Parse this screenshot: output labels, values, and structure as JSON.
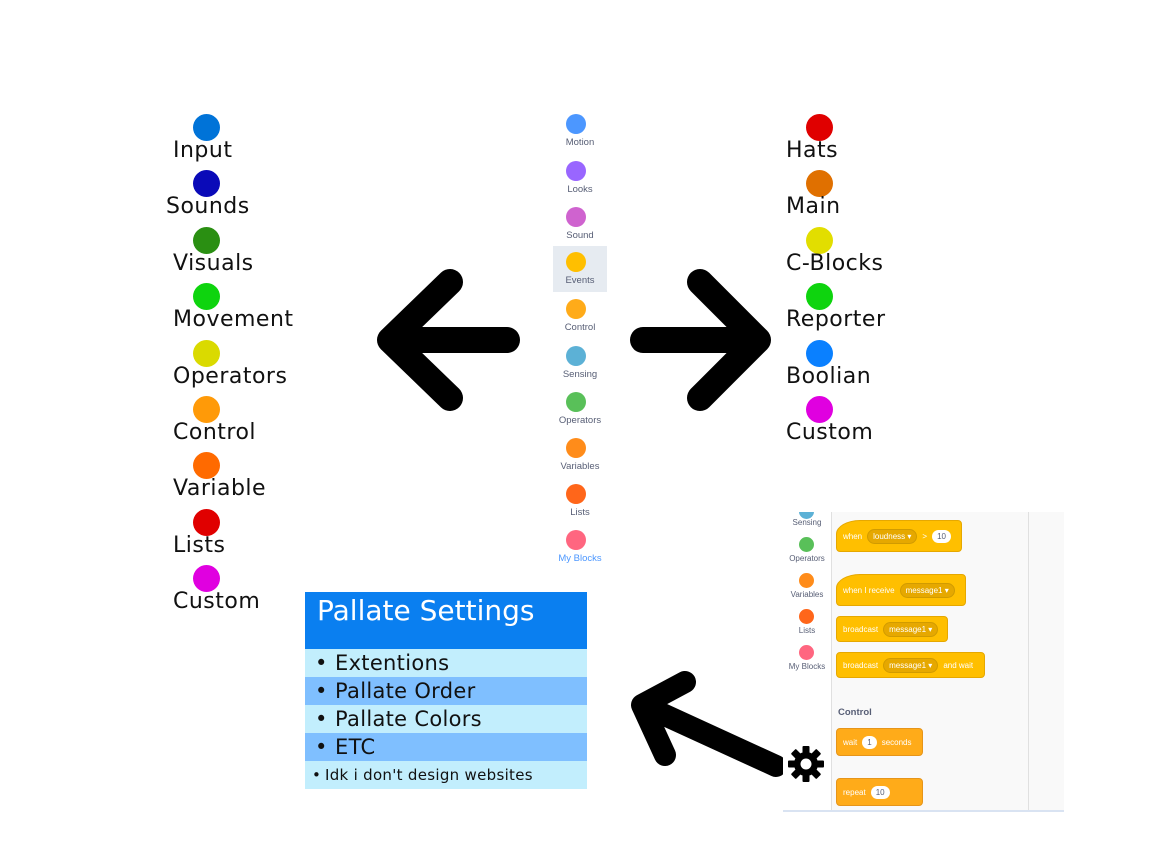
{
  "left_list": {
    "items": [
      {
        "label": "Input",
        "color": "#0073d8"
      },
      {
        "label": "Sounds",
        "color": "#0a0ab8"
      },
      {
        "label": "Visuals",
        "color": "#2a8f12"
      },
      {
        "label": "Movement",
        "color": "#0ed40e"
      },
      {
        "label": "Operators",
        "color": "#dada00"
      },
      {
        "label": "Control",
        "color": "#ff9a08"
      },
      {
        "label": "Variable",
        "color": "#ff6a00"
      },
      {
        "label": "Lists",
        "color": "#e00000"
      },
      {
        "label": "Custom",
        "color": "#e000e0"
      }
    ]
  },
  "right_list": {
    "items": [
      {
        "label": "Hats",
        "color": "#e00000"
      },
      {
        "label": "Main",
        "color": "#e07000"
      },
      {
        "label": "C-Blocks",
        "color": "#e2de00"
      },
      {
        "label": "Reporter",
        "color": "#0ed40e"
      },
      {
        "label": "Boolian",
        "color": "#0a80ff"
      },
      {
        "label": "Custom",
        "color": "#e000e0"
      }
    ]
  },
  "categories": {
    "items": [
      {
        "label": "Motion",
        "color": "#4c97ff"
      },
      {
        "label": "Looks",
        "color": "#9966ff"
      },
      {
        "label": "Sound",
        "color": "#cf63cf"
      },
      {
        "label": "Events",
        "color": "#ffbf00",
        "selected": true
      },
      {
        "label": "Control",
        "color": "#ffab19"
      },
      {
        "label": "Sensing",
        "color": "#5cb1d6"
      },
      {
        "label": "Operators",
        "color": "#59c059"
      },
      {
        "label": "Variables",
        "color": "#ff8c1a"
      },
      {
        "label": "Lists",
        "color": "#ff661a"
      },
      {
        "label": "My Blocks",
        "color": "#ff6680"
      }
    ]
  },
  "settings": {
    "title": "Pallate Settings",
    "rows": [
      {
        "bullet": "•",
        "text": "Extentions"
      },
      {
        "bullet": "•",
        "text": "Pallate Order"
      },
      {
        "bullet": "•",
        "text": "Pallate Colors"
      },
      {
        "bullet": "•",
        "text": "ETC"
      },
      {
        "bullet": "•",
        "text": "Idk i don't design websites"
      }
    ]
  },
  "editor": {
    "categories": [
      {
        "label": "Sensing",
        "color": "#5cb1d6"
      },
      {
        "label": "Operators",
        "color": "#59c059"
      },
      {
        "label": "Variables",
        "color": "#ff8c1a"
      },
      {
        "label": "Lists",
        "color": "#ff661a"
      },
      {
        "label": "My Blocks",
        "color": "#ff6680"
      }
    ],
    "blocks": {
      "when_loudness": {
        "when": "when",
        "sensor": "loudness",
        "op": ">",
        "value": "10"
      },
      "when_receive": {
        "text": "when I receive",
        "message": "message1"
      },
      "broadcast": {
        "text": "broadcast",
        "message": "message1"
      },
      "broadcast_wait": {
        "text": "broadcast",
        "message": "message1",
        "suffix": "and wait"
      },
      "control_heading": "Control",
      "wait": {
        "text": "wait",
        "value": "1",
        "suffix": "seconds"
      },
      "repeat": {
        "text": "repeat",
        "value": "10"
      }
    }
  }
}
